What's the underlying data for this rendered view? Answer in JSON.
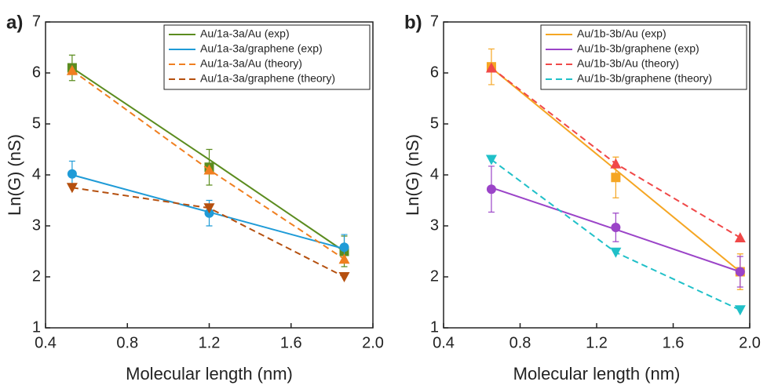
{
  "chart_data": [
    {
      "type": "line",
      "panel_label": "a)",
      "x_label": "Molecular length (nm)",
      "y_label": "Ln(G) (nS)",
      "x": [
        0.53,
        1.2,
        1.86
      ],
      "xlim": [
        0.4,
        2.0
      ],
      "xticks": [
        0.4,
        0.8,
        1.2,
        1.6,
        {
          "value": 2.0,
          "label": "2.0"
        }
      ],
      "ylim": [
        1,
        7
      ],
      "yticks": [
        1,
        2,
        3,
        4,
        5,
        6,
        7
      ],
      "series": [
        {
          "name": "Au/1a-3a/Au (exp)",
          "color": "#5b8c1f",
          "marker": "square",
          "dash": false,
          "values": [
            6.1,
            4.15,
            2.5
          ],
          "errors": [
            0.25,
            0.35,
            0.3
          ],
          "fit": [
            6.1,
            4.3,
            2.5
          ]
        },
        {
          "name": "Au/1a-3a/graphene (exp)",
          "color": "#1f9bd7",
          "marker": "circle",
          "dash": false,
          "values": [
            4.02,
            3.25,
            2.58
          ],
          "errors": [
            0.25,
            0.25,
            0.25
          ],
          "fit": [
            4.0,
            3.27,
            2.55
          ]
        },
        {
          "name": "Au/1a-3a/Au (theory)",
          "color": "#f07f20",
          "marker": "triangle-up",
          "dash": true,
          "values": [
            6.05,
            4.1,
            2.35
          ]
        },
        {
          "name": "Au/1a-3a/graphene (theory)",
          "color": "#b5500f",
          "marker": "triangle-down",
          "dash": true,
          "values": [
            3.75,
            3.35,
            2.0
          ]
        }
      ]
    },
    {
      "type": "line",
      "panel_label": "b)",
      "x_label": "Molecular length (nm)",
      "y_label": "Ln(G) (nS)",
      "x": [
        0.65,
        1.3,
        1.95
      ],
      "xlim": [
        0.4,
        2.0
      ],
      "xticks": [
        0.4,
        0.8,
        1.2,
        1.6,
        {
          "value": 2.0,
          "label": "2.0"
        }
      ],
      "ylim": [
        1,
        7
      ],
      "yticks": [
        1,
        2,
        3,
        4,
        5,
        6,
        7
      ],
      "series": [
        {
          "name": "Au/1b-3b/Au (exp)",
          "color": "#f5a623",
          "marker": "square",
          "dash": false,
          "values": [
            6.12,
            3.95,
            2.1
          ],
          "errors": [
            0.35,
            0.4,
            0.35
          ],
          "fit": [
            6.1,
            4.1,
            2.1
          ]
        },
        {
          "name": "Au/1b-3b/graphene (exp)",
          "color": "#9b44c8",
          "marker": "circle",
          "dash": false,
          "values": [
            3.72,
            2.97,
            2.1
          ],
          "errors": [
            0.45,
            0.28,
            0.3
          ],
          "fit": [
            3.75,
            2.93,
            2.1
          ]
        },
        {
          "name": "Au/1b-3b/Au (theory)",
          "color": "#f04848",
          "marker": "triangle-up",
          "dash": true,
          "values": [
            6.1,
            4.22,
            2.77
          ]
        },
        {
          "name": "Au/1b-3b/graphene (theory)",
          "color": "#20c0c8",
          "marker": "triangle-down",
          "dash": true,
          "values": [
            4.3,
            2.48,
            1.35
          ]
        }
      ]
    }
  ]
}
